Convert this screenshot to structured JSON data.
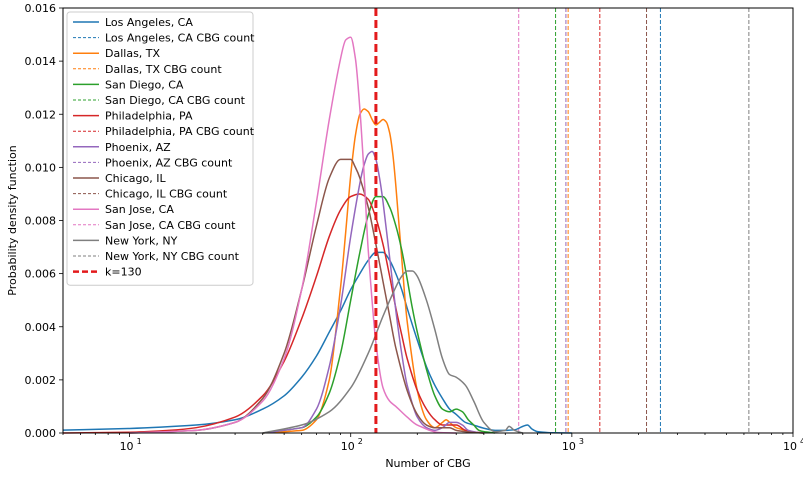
{
  "chart_data": {
    "type": "line",
    "xscale": "log",
    "xlim": [
      5,
      10000
    ],
    "ylim": [
      0,
      0.016
    ],
    "xlabel": "Number of CBG",
    "ylabel": "Probability density function",
    "x_ticks": [
      10,
      100,
      1000,
      10000
    ],
    "x_tick_labels": [
      {
        "base": "10",
        "exp": "1"
      },
      {
        "base": "10",
        "exp": "2"
      },
      {
        "base": "10",
        "exp": "3"
      },
      {
        "base": "10",
        "exp": "4"
      }
    ],
    "y_ticks": [
      0,
      0.002,
      0.004,
      0.006,
      0.008,
      0.01,
      0.012,
      0.014,
      0.016
    ],
    "y_tick_labels": [
      "0.000",
      "0.002",
      "0.004",
      "0.006",
      "0.008",
      "0.010",
      "0.012",
      "0.014",
      "0.016"
    ],
    "grid": false,
    "legend_position": "top-left",
    "series": [
      {
        "name": "Los Angeles, CA",
        "color": "#1f77b4",
        "x": [
          5,
          10,
          20,
          30,
          40,
          50,
          60,
          70,
          80,
          90,
          100,
          110,
          120,
          130,
          140,
          150,
          160,
          170,
          180,
          200,
          220,
          240,
          260,
          280,
          300,
          330,
          360,
          400,
          450,
          500,
          550,
          600,
          630,
          660,
          700,
          800,
          1000
        ],
        "y": [
          0.00011,
          0.00017,
          0.0003,
          0.0005,
          0.0009,
          0.0014,
          0.0021,
          0.0029,
          0.0038,
          0.0046,
          0.0054,
          0.006,
          0.0065,
          0.0068,
          0.0068,
          0.0065,
          0.006,
          0.0054,
          0.0047,
          0.0035,
          0.0025,
          0.0018,
          0.0013,
          0.0009,
          0.0007,
          0.0004,
          0.0003,
          0.00018,
          0.0001,
          0.0001,
          0.00012,
          0.00025,
          0.0003,
          0.00015,
          5e-05,
          1e-05,
          0
        ]
      },
      {
        "name": "Dallas, TX",
        "color": "#ff7f0e",
        "x": [
          40,
          60,
          70,
          80,
          90,
          95,
          100,
          105,
          110,
          115,
          120,
          125,
          130,
          135,
          140,
          145,
          150,
          155,
          160,
          170,
          180,
          200,
          220,
          240,
          260,
          270,
          280,
          300,
          330,
          360,
          400
        ],
        "y": [
          0,
          0.0001,
          0.0005,
          0.002,
          0.0055,
          0.0076,
          0.0097,
          0.0112,
          0.012,
          0.0122,
          0.0121,
          0.0118,
          0.0116,
          0.0117,
          0.0118,
          0.0117,
          0.0113,
          0.0105,
          0.0093,
          0.0066,
          0.0042,
          0.0016,
          0.0005,
          0.0002,
          0.0004,
          0.0005,
          0.0004,
          0.0002,
          0.0001,
          4e-05,
          0
        ]
      },
      {
        "name": "San Diego, CA",
        "color": "#2ca02c",
        "x": [
          40,
          60,
          70,
          80,
          90,
          100,
          110,
          120,
          130,
          140,
          150,
          160,
          170,
          180,
          190,
          200,
          220,
          240,
          260,
          280,
          300,
          320,
          340,
          360,
          380,
          400,
          450
        ],
        "y": [
          0,
          0.0002,
          0.0006,
          0.0015,
          0.003,
          0.005,
          0.0068,
          0.0082,
          0.0089,
          0.0089,
          0.0085,
          0.0078,
          0.0069,
          0.0058,
          0.0047,
          0.0038,
          0.0024,
          0.0014,
          0.0009,
          0.0008,
          0.0009,
          0.0008,
          0.0005,
          0.0003,
          0.0001,
          5e-05,
          0
        ]
      },
      {
        "name": "Philadelphia, PA",
        "color": "#d62728",
        "x": [
          5,
          10,
          15,
          20,
          30,
          40,
          50,
          60,
          70,
          80,
          90,
          100,
          110,
          120,
          130,
          140,
          150,
          160,
          170,
          180,
          200,
          220,
          240,
          260,
          280,
          300,
          330,
          360,
          400
        ],
        "y": [
          0,
          3e-05,
          0.0001,
          0.0002,
          0.0006,
          0.0014,
          0.0027,
          0.0043,
          0.0059,
          0.0074,
          0.0084,
          0.0089,
          0.009,
          0.0088,
          0.0081,
          0.0071,
          0.0059,
          0.0047,
          0.0037,
          0.0028,
          0.0016,
          0.0009,
          0.0005,
          0.0003,
          0.0003,
          0.0003,
          0.0001,
          3e-05,
          0
        ]
      },
      {
        "name": "Phoenix, AZ",
        "color": "#9467bd",
        "x": [
          40,
          60,
          70,
          80,
          90,
          100,
          110,
          115,
          120,
          125,
          130,
          135,
          140,
          150,
          160,
          170,
          180,
          200,
          220,
          240,
          260,
          280,
          300,
          320,
          340,
          370,
          400
        ],
        "y": [
          0,
          0.0002,
          0.0009,
          0.0025,
          0.0048,
          0.0074,
          0.0094,
          0.0101,
          0.0105,
          0.0106,
          0.0103,
          0.0096,
          0.0087,
          0.0066,
          0.0046,
          0.003,
          0.0018,
          0.0006,
          0.0002,
          0.0001,
          0.0002,
          0.0004,
          0.0004,
          0.0003,
          0.0001,
          3e-05,
          0
        ]
      },
      {
        "name": "Chicago, IL",
        "color": "#8c564b",
        "x": [
          10,
          20,
          30,
          40,
          50,
          60,
          70,
          80,
          90,
          100,
          105,
          110,
          120,
          130,
          140,
          150,
          160,
          180,
          200,
          220,
          240,
          260,
          280,
          300,
          330,
          360,
          400
        ],
        "y": [
          0,
          0.0001,
          0.0004,
          0.0013,
          0.003,
          0.0054,
          0.0078,
          0.0096,
          0.0103,
          0.0103,
          0.01,
          0.0096,
          0.0085,
          0.0071,
          0.0057,
          0.0044,
          0.0032,
          0.0016,
          0.0007,
          0.0003,
          0.0002,
          0.0002,
          0.0002,
          0.0001,
          5e-05,
          2e-05,
          0
        ]
      },
      {
        "name": "San Jose, CA",
        "color": "#e377c2",
        "x": [
          10,
          20,
          30,
          40,
          50,
          60,
          70,
          80,
          90,
          95,
          100,
          105,
          110,
          115,
          120,
          130,
          140,
          150,
          160,
          180,
          200,
          250,
          300
        ],
        "y": [
          0,
          0.0001,
          0.0004,
          0.0012,
          0.0028,
          0.0054,
          0.0087,
          0.0118,
          0.0141,
          0.0148,
          0.0149,
          0.0141,
          0.0122,
          0.0097,
          0.0069,
          0.0034,
          0.0017,
          0.0012,
          0.001,
          0.0006,
          0.0003,
          2e-05,
          0
        ]
      },
      {
        "name": "New York, NY",
        "color": "#7f7f7f",
        "x": [
          40,
          60,
          80,
          100,
          120,
          140,
          160,
          170,
          180,
          190,
          200,
          220,
          240,
          260,
          280,
          300,
          330,
          360,
          400,
          450,
          500,
          520,
          550,
          600
        ],
        "y": [
          0,
          0.0003,
          0.0008,
          0.0017,
          0.003,
          0.0044,
          0.0055,
          0.0059,
          0.0061,
          0.0061,
          0.0059,
          0.005,
          0.0039,
          0.0028,
          0.0022,
          0.0021,
          0.0018,
          0.0012,
          0.0004,
          5e-05,
          0.0001,
          0.00025,
          0.0001,
          0
        ]
      }
    ],
    "cbg_counts": [
      {
        "name": "Los Angeles, CA CBG count",
        "color": "#1f77b4",
        "x": 2515
      },
      {
        "name": "Dallas, TX CBG count",
        "color": "#ff7f0e",
        "x": 962
      },
      {
        "name": "San Diego, CA CBG count",
        "color": "#2ca02c",
        "x": 844
      },
      {
        "name": "Philadelphia, PA CBG count",
        "color": "#d62728",
        "x": 1338
      },
      {
        "name": "Phoenix, AZ CBG count",
        "color": "#9467bd",
        "x": 940
      },
      {
        "name": "Chicago, IL CBG count",
        "color": "#8c564b",
        "x": 2176
      },
      {
        "name": "San Jose, CA CBG count",
        "color": "#e377c2",
        "x": 575
      },
      {
        "name": "New York, NY CBG count",
        "color": "#7f7f7f",
        "x": 6316
      }
    ],
    "k_line": {
      "name": "k=130",
      "color": "#e31a1c",
      "x": 130
    },
    "legend_entries": [
      {
        "label": "Los Angeles, CA",
        "color": "#1f77b4",
        "style": "solid"
      },
      {
        "label": "Los Angeles, CA CBG count",
        "color": "#1f77b4",
        "style": "dashed"
      },
      {
        "label": "Dallas, TX",
        "color": "#ff7f0e",
        "style": "solid"
      },
      {
        "label": "Dallas, TX CBG count",
        "color": "#ff7f0e",
        "style": "dashed"
      },
      {
        "label": "San Diego, CA",
        "color": "#2ca02c",
        "style": "solid"
      },
      {
        "label": "San Diego, CA CBG count",
        "color": "#2ca02c",
        "style": "dashed"
      },
      {
        "label": "Philadelphia, PA",
        "color": "#d62728",
        "style": "solid"
      },
      {
        "label": "Philadelphia, PA CBG count",
        "color": "#d62728",
        "style": "dashed"
      },
      {
        "label": "Phoenix, AZ",
        "color": "#9467bd",
        "style": "solid"
      },
      {
        "label": "Phoenix, AZ CBG count",
        "color": "#9467bd",
        "style": "dashed"
      },
      {
        "label": "Chicago, IL",
        "color": "#8c564b",
        "style": "solid"
      },
      {
        "label": "Chicago, IL CBG count",
        "color": "#8c564b",
        "style": "dashed"
      },
      {
        "label": "San Jose, CA",
        "color": "#e377c2",
        "style": "solid"
      },
      {
        "label": "San Jose, CA CBG count",
        "color": "#e377c2",
        "style": "dashed"
      },
      {
        "label": "New York, NY",
        "color": "#7f7f7f",
        "style": "solid"
      },
      {
        "label": "New York, NY CBG count",
        "color": "#7f7f7f",
        "style": "dashed"
      },
      {
        "label": "k=130",
        "color": "#e31a1c",
        "style": "bold-dashed"
      }
    ]
  }
}
